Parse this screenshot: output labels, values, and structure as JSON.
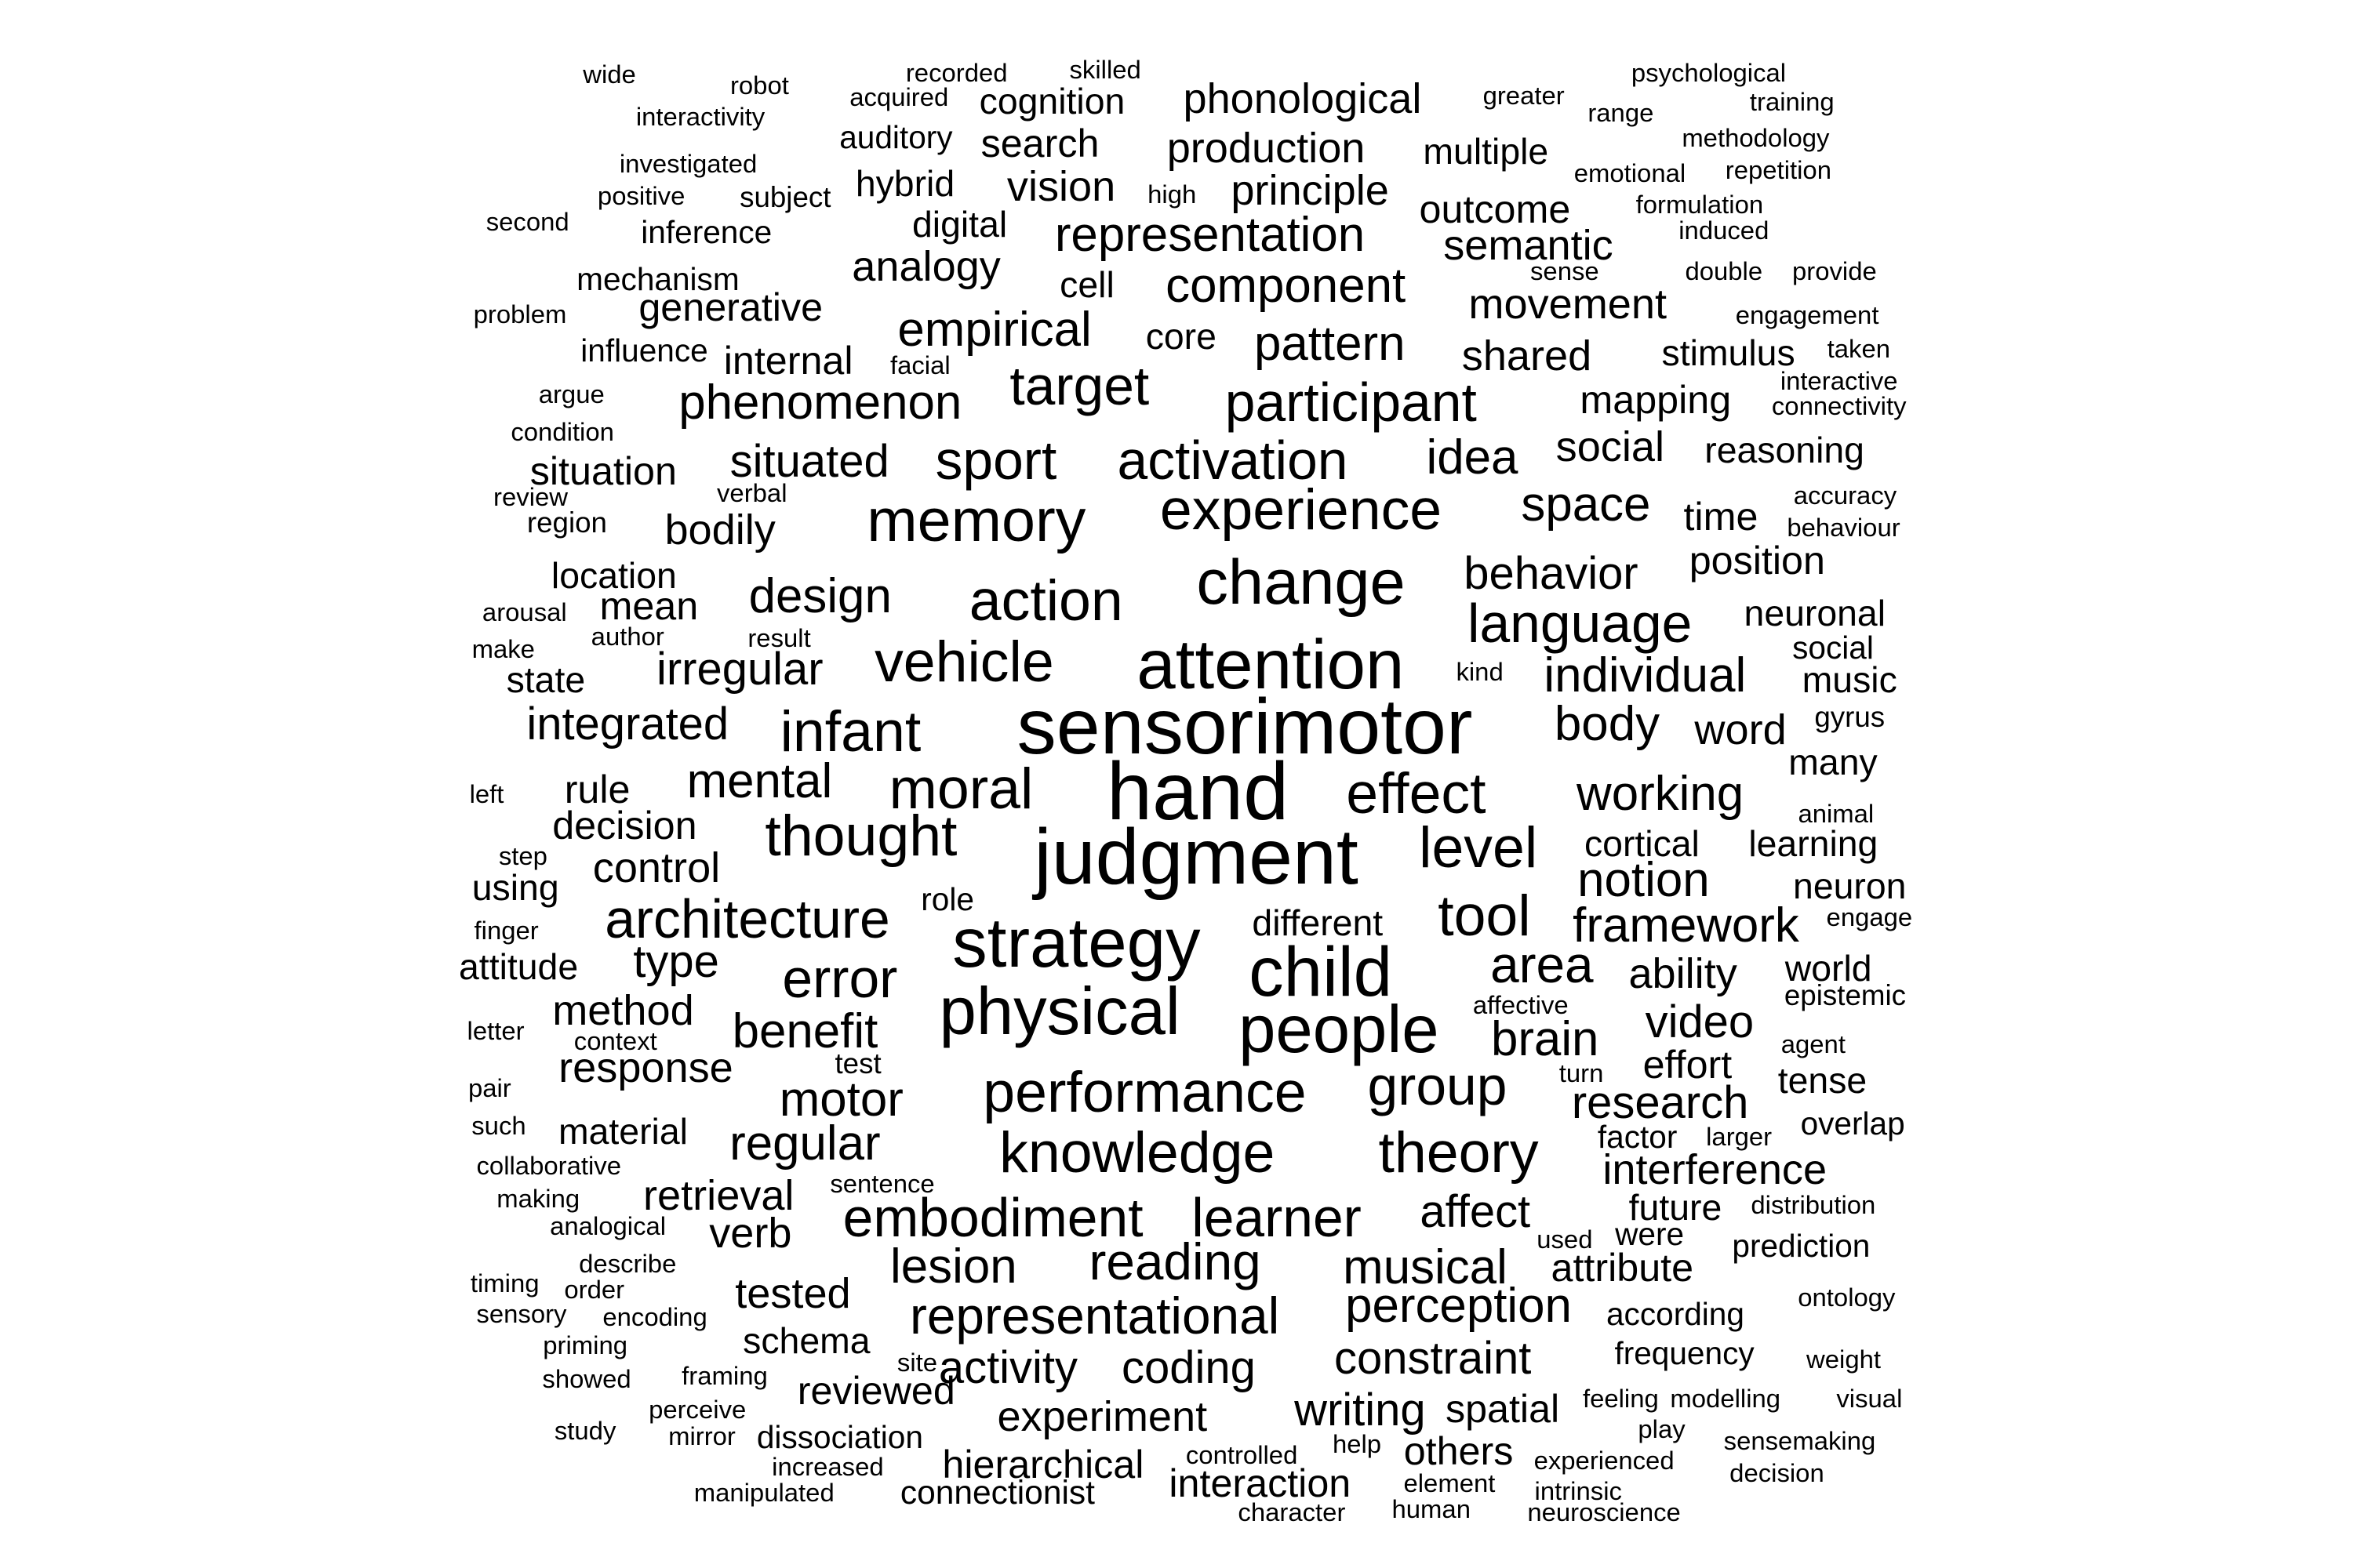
{
  "word_cloud": {
    "words": [
      "wide",
      "robot",
      "recorded",
      "skilled",
      "psychological",
      "interactivity",
      "acquired",
      "cognition",
      "phonological",
      "greater",
      "range",
      "training",
      "auditory",
      "search",
      "production",
      "multiple",
      "methodology",
      "investigated",
      "hybrid",
      "vision",
      "principle",
      "emotional",
      "repetition",
      "positive",
      "subject",
      "high",
      "formulation",
      "second",
      "inference",
      "digital",
      "representation",
      "outcome",
      "induced",
      "semantic",
      "mechanism",
      "analogy",
      "cell",
      "component",
      "sense",
      "double",
      "provide",
      "problem",
      "generative",
      "movement",
      "engagement",
      "empirical",
      "core",
      "influence",
      "internal",
      "facial",
      "pattern",
      "shared",
      "stimulus",
      "taken",
      "target",
      "interactive",
      "argue",
      "phenomenon",
      "participant",
      "mapping",
      "connectivity",
      "condition",
      "sport",
      "activation",
      "idea",
      "social",
      "reasoning",
      "situation",
      "situated",
      "review",
      "verbal",
      "experience",
      "space",
      "accuracy",
      "time",
      "region",
      "bodily",
      "memory",
      "behaviour",
      "location",
      "change",
      "position",
      "behavior",
      "design",
      "action",
      "arousal",
      "mean",
      "language",
      "neuronal",
      "make",
      "author",
      "result",
      "social",
      "attention",
      "state",
      "irregular",
      "vehicle",
      "kind",
      "individual",
      "music",
      "integrated",
      "infant",
      "sensorimotor",
      "body",
      "word",
      "gyrus",
      "many",
      "left",
      "rule",
      "mental",
      "moral",
      "effect",
      "working",
      "hand",
      "animal",
      "decision",
      "thought",
      "step",
      "cortical",
      "learning",
      "level",
      "judgment",
      "using",
      "control",
      "notion",
      "neuron",
      "architecture",
      "role",
      "tool",
      "different",
      "framework",
      "engage",
      "finger",
      "strategy",
      "attitude",
      "type",
      "area",
      "ability",
      "world",
      "child",
      "error",
      "epistemic",
      "method",
      "affective",
      "physical",
      "video",
      "letter",
      "people",
      "benefit",
      "context",
      "brain",
      "agent",
      "test",
      "response",
      "group",
      "turn",
      "effort",
      "pair",
      "tense",
      "motor",
      "performance",
      "research",
      "such",
      "material",
      "regular",
      "factor",
      "larger",
      "overlap",
      "theory",
      "collaborative",
      "knowledge",
      "interference",
      "sentence",
      "retrieval",
      "distribution",
      "making",
      "future",
      "affect",
      "embodiment",
      "learner",
      "analogical",
      "verb",
      "used",
      "were",
      "prediction",
      "describe",
      "lesion",
      "reading",
      "musical",
      "attribute",
      "timing",
      "order",
      "perception",
      "tested",
      "ontology",
      "sensory",
      "encoding",
      "according",
      "representational",
      "schema",
      "priming",
      "frequency",
      "constraint",
      "site",
      "weight",
      "showed",
      "framing",
      "activity",
      "coding",
      "reviewed",
      "writing",
      "feeling",
      "modelling",
      "visual",
      "perceive",
      "spatial",
      "experiment",
      "study",
      "play",
      "mirror",
      "dissociation",
      "help",
      "sensemaking",
      "others",
      "increased",
      "hierarchical",
      "controlled",
      "experienced",
      "decision",
      "interaction",
      "element",
      "intrinsic",
      "manipulated",
      "connectionist",
      "character",
      "human",
      "neuroscience"
    ]
  }
}
